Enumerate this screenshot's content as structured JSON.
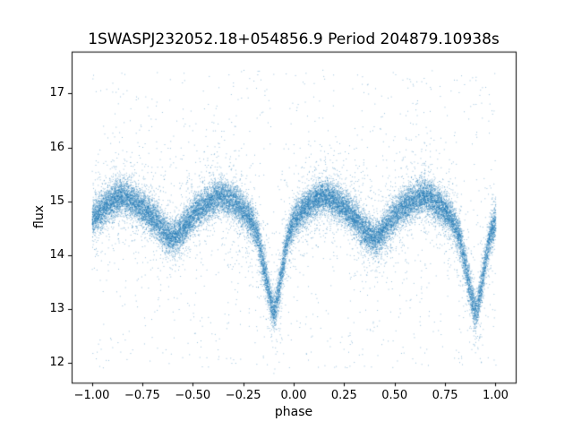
{
  "chart_data": {
    "type": "scatter",
    "title": "1SWASPJ232052.18+054856.9 Period 204879.10938s",
    "xlabel": "phase",
    "ylabel": "flux",
    "xlim": [
      -1.1,
      1.1
    ],
    "ylim": [
      11.63,
      17.78
    ],
    "xticks": [
      -1.0,
      -0.75,
      -0.5,
      -0.25,
      0.0,
      0.25,
      0.5,
      0.75,
      1.0
    ],
    "xtick_labels": [
      "−1.00",
      "−0.75",
      "−0.50",
      "−0.25",
      "0.00",
      "0.25",
      "0.50",
      "0.75",
      "1.00"
    ],
    "yticks": [
      12,
      13,
      14,
      15,
      16,
      17
    ],
    "ytick_labels": [
      "12",
      "13",
      "14",
      "15",
      "16",
      "17"
    ],
    "grid": false,
    "legend": null,
    "point_color": "#1f77b4",
    "point_alpha": 0.45,
    "n_points": 30000,
    "seed": 42,
    "phase_range": [
      -1.0,
      1.0
    ],
    "noise_sigma": 0.16,
    "wide_noise": {
      "fraction": 0.1,
      "sigma": 0.5
    },
    "outliers": {
      "fraction": 0.035,
      "flux_min": 11.9,
      "flux_max": 17.45
    },
    "mean_curve": {
      "comment": "Phase-folded eclipsing-binary mean light curve; primary eclipse at phase 0.9/-0.1, secondary at 0.4/-0.6, maxima ~15.1 at 0.15 and 0.65",
      "phase": [
        0.0,
        0.03,
        0.06,
        0.1,
        0.13,
        0.16,
        0.2,
        0.25,
        0.3,
        0.34,
        0.37,
        0.4,
        0.43,
        0.46,
        0.5,
        0.55,
        0.6,
        0.64,
        0.68,
        0.72,
        0.76,
        0.79,
        0.82,
        0.845,
        0.87,
        0.89,
        0.9,
        0.91,
        0.93,
        0.95,
        0.97,
        1.0
      ],
      "flux": [
        14.65,
        14.78,
        14.9,
        15.02,
        15.08,
        15.1,
        15.02,
        14.88,
        14.7,
        14.52,
        14.4,
        14.3,
        14.4,
        14.55,
        14.75,
        14.93,
        15.04,
        15.1,
        15.05,
        14.93,
        14.78,
        14.62,
        14.35,
        13.9,
        13.4,
        13.05,
        12.95,
        13.05,
        13.45,
        13.95,
        14.35,
        14.65
      ]
    }
  }
}
